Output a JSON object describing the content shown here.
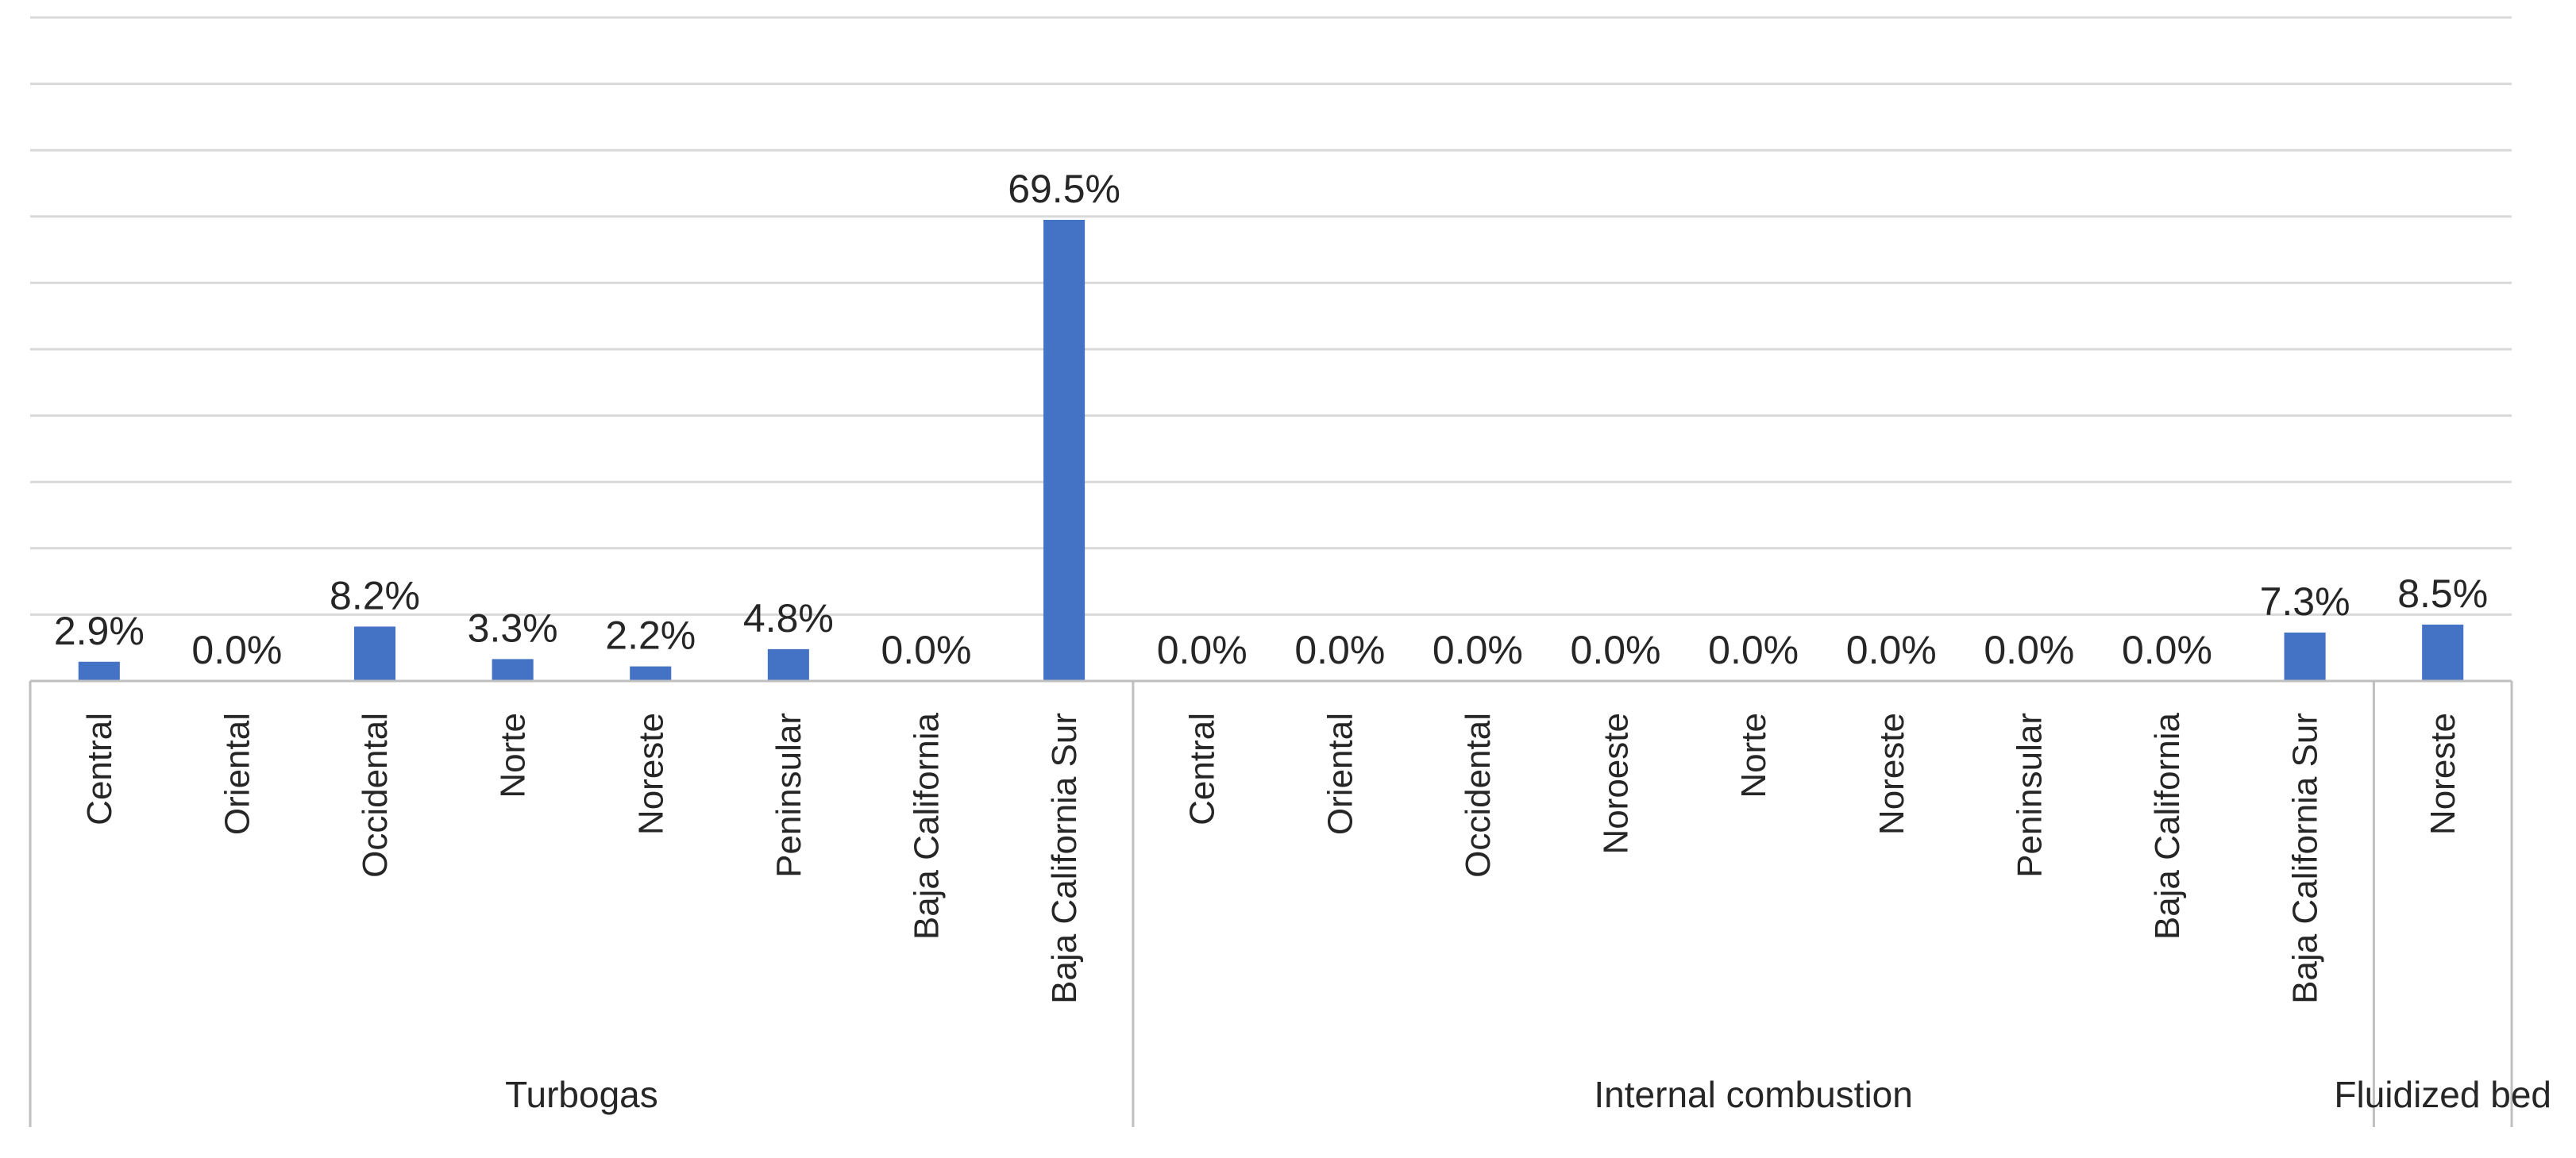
{
  "chart_data": {
    "type": "bar",
    "title": "",
    "xlabel": "",
    "ylabel": "",
    "ylim": [
      0,
      100
    ],
    "grid": true,
    "value_format": "percent_1dp",
    "colors": {
      "bar": "#4472C4",
      "grid": "#D9D9D9",
      "axis": "#BFBFBF",
      "text": "#262626"
    },
    "groups": [
      {
        "name": "Turbogas",
        "categories": [
          "Central",
          "Oriental",
          "Occidental",
          "Norte",
          "Noreste",
          "Peninsular",
          "Baja California",
          "Baja California Sur"
        ],
        "values": [
          2.9,
          0.0,
          8.2,
          3.3,
          2.2,
          4.8,
          0.0,
          69.5
        ],
        "labels": [
          "2.9%",
          "0.0%",
          "8.2%",
          "3.3%",
          "2.2%",
          "4.8%",
          "0.0%",
          "69.5%"
        ]
      },
      {
        "name": "Internal combustion",
        "categories": [
          "Central",
          "Oriental",
          "Occidental",
          "Noroeste",
          "Norte",
          "Noreste",
          "Peninsular",
          "Baja California",
          "Baja California Sur"
        ],
        "values": [
          0.0,
          0.0,
          0.0,
          0.0,
          0.0,
          0.0,
          0.0,
          0.0,
          7.3
        ],
        "labels": [
          "0.0%",
          "0.0%",
          "0.0%",
          "0.0%",
          "0.0%",
          "0.0%",
          "0.0%",
          "0.0%",
          "7.3%"
        ]
      },
      {
        "name": "Fluidized bed",
        "categories": [
          "Noreste"
        ],
        "values": [
          8.5
        ],
        "labels": [
          "8.5%"
        ]
      }
    ]
  }
}
